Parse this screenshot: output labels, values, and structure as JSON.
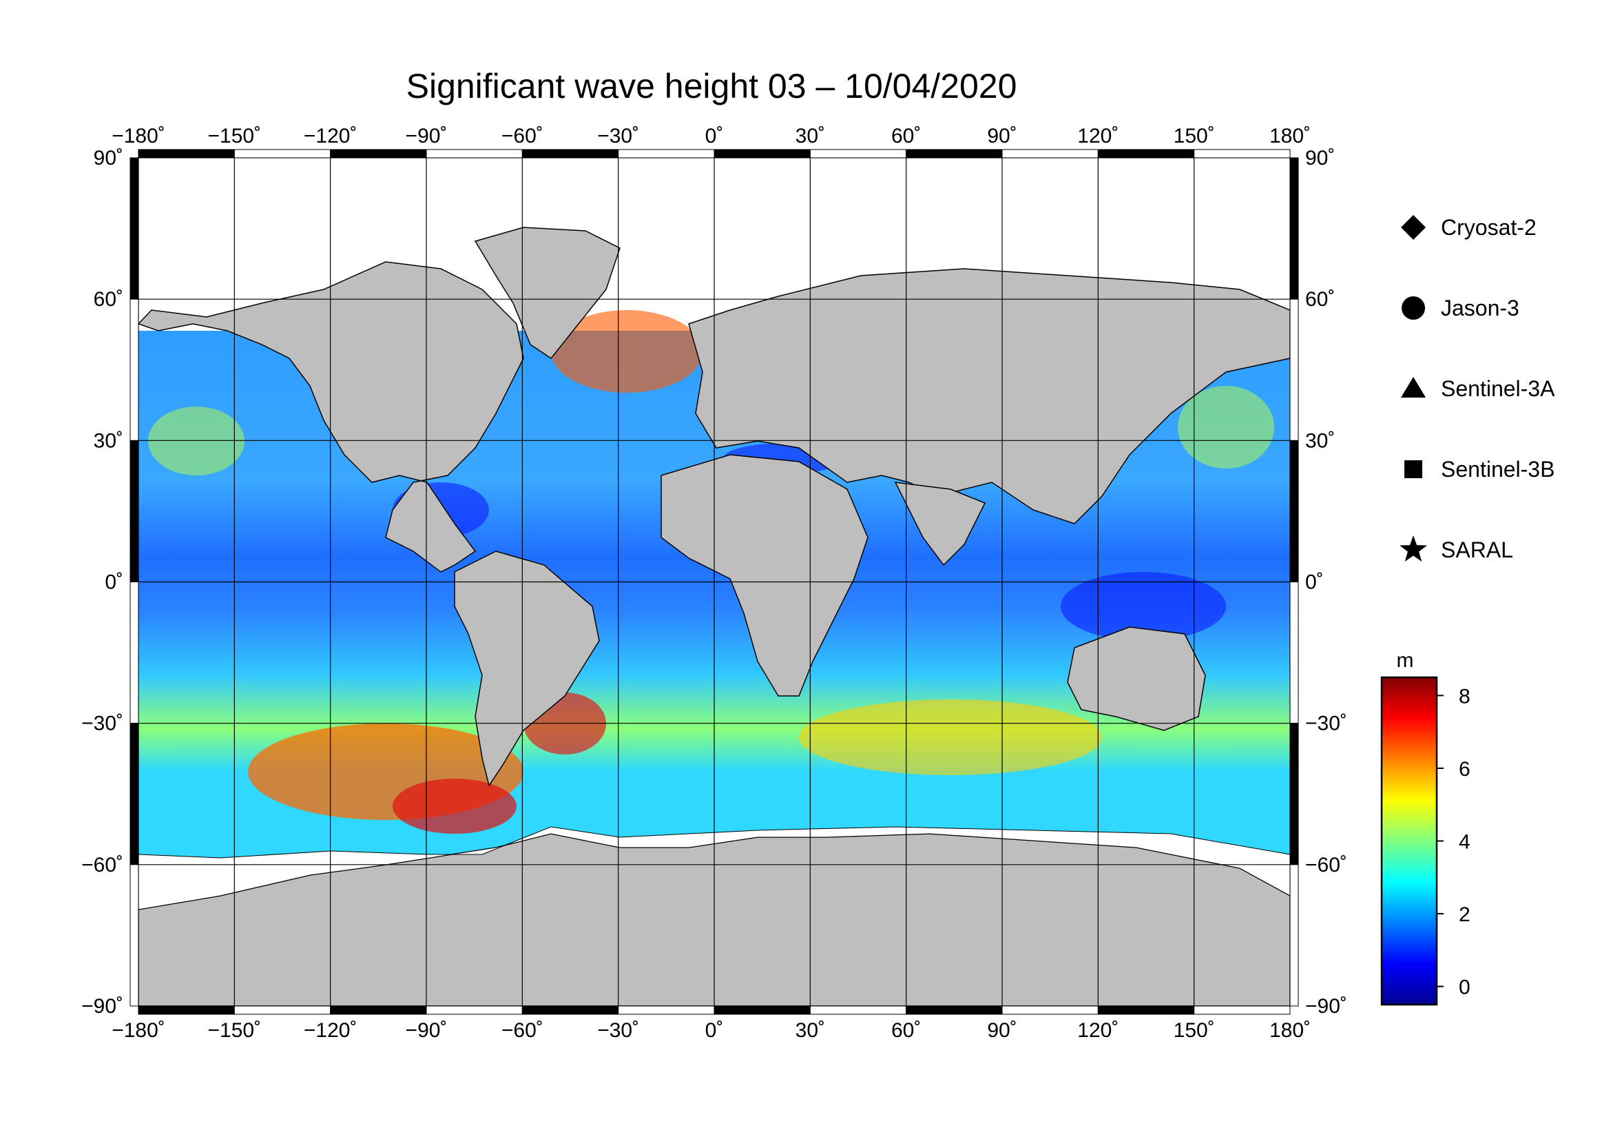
{
  "map": {
    "title": "Significant wave height 03 – 10/04/2020",
    "lon_range": [
      -180,
      180
    ],
    "lat_range": [
      -90,
      90
    ],
    "lon_ticks": [
      "−180˚",
      "−150˚",
      "−120˚",
      "−90˚",
      "−60˚",
      "−30˚",
      "0˚",
      "30˚",
      "60˚",
      "90˚",
      "120˚",
      "150˚",
      "180˚"
    ],
    "lat_ticks_left": [
      "90˚",
      "60˚",
      "30˚",
      "0˚",
      "−30˚",
      "−60˚",
      "−90˚"
    ],
    "lat_ticks_right": [
      "90˚",
      "60˚",
      "30˚",
      "0˚",
      "−30˚",
      "−60˚",
      "−90˚"
    ],
    "land_color": "#bebebe",
    "ice_color": "#ffffff",
    "frame_color": "#000000"
  },
  "legend": {
    "items": [
      {
        "label": "Cryosat-2",
        "symbol": "diamond"
      },
      {
        "label": "Jason-3",
        "symbol": "circle"
      },
      {
        "label": "Sentinel-3A",
        "symbol": "triangle"
      },
      {
        "label": "Sentinel-3B",
        "symbol": "square"
      },
      {
        "label": "SARAL",
        "symbol": "star"
      }
    ]
  },
  "colorbar": {
    "unit": "m",
    "range": [
      -0.5,
      8.5
    ],
    "ticks": [
      "0",
      "2",
      "4",
      "6",
      "8"
    ],
    "colors": [
      "#00008f",
      "#0000ff",
      "#0080ff",
      "#00ffff",
      "#80ff80",
      "#ffff00",
      "#ff8000",
      "#ff0000",
      "#800000"
    ]
  }
}
